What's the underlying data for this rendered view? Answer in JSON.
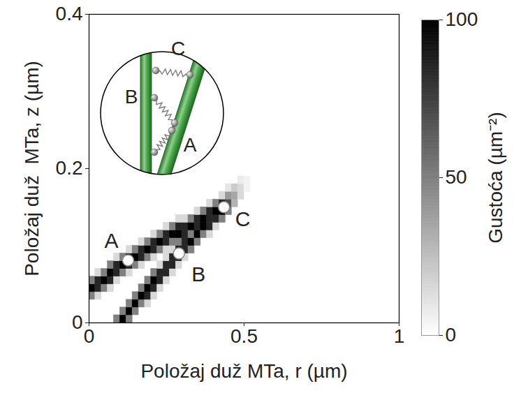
{
  "chart_data": {
    "type": "heatmap",
    "xlabel": "Položaj duž MTa, r (µm)",
    "ylabel": "Položaj duž  MTa, z (µm)",
    "xlim": [
      0,
      1
    ],
    "ylim": [
      0,
      0.4
    ],
    "xticks": [
      0,
      0.5,
      1
    ],
    "yticks": [
      0,
      0.2,
      0.4
    ],
    "cell_size": {
      "r": 0.02,
      "z": 0.01
    },
    "cells": [
      [
        0.01,
        0.035,
        50
      ],
      [
        0.01,
        0.045,
        100
      ],
      [
        0.01,
        0.055,
        50
      ],
      [
        0.03,
        0.035,
        15
      ],
      [
        0.03,
        0.045,
        85
      ],
      [
        0.03,
        0.055,
        85
      ],
      [
        0.03,
        0.065,
        15
      ],
      [
        0.05,
        0.045,
        50
      ],
      [
        0.05,
        0.055,
        100
      ],
      [
        0.05,
        0.065,
        50
      ],
      [
        0.07,
        0.045,
        15
      ],
      [
        0.07,
        0.055,
        85
      ],
      [
        0.07,
        0.065,
        100
      ],
      [
        0.07,
        0.075,
        50
      ],
      [
        0.09,
        0.005,
        50
      ],
      [
        0.09,
        0.055,
        15
      ],
      [
        0.09,
        0.065,
        85
      ],
      [
        0.09,
        0.075,
        85
      ],
      [
        0.09,
        0.085,
        15
      ],
      [
        0.11,
        0.005,
        100
      ],
      [
        0.11,
        0.015,
        50
      ],
      [
        0.11,
        0.065,
        50
      ],
      [
        0.11,
        0.075,
        100
      ],
      [
        0.11,
        0.085,
        50
      ],
      [
        0.13,
        0.005,
        50
      ],
      [
        0.13,
        0.015,
        100
      ],
      [
        0.13,
        0.025,
        50
      ],
      [
        0.13,
        0.065,
        15
      ],
      [
        0.13,
        0.075,
        85
      ],
      [
        0.13,
        0.085,
        85
      ],
      [
        0.13,
        0.095,
        15
      ],
      [
        0.15,
        0.015,
        50
      ],
      [
        0.15,
        0.025,
        100
      ],
      [
        0.15,
        0.035,
        50
      ],
      [
        0.15,
        0.075,
        50
      ],
      [
        0.15,
        0.085,
        100
      ],
      [
        0.15,
        0.095,
        50
      ],
      [
        0.17,
        0.025,
        50
      ],
      [
        0.17,
        0.035,
        100
      ],
      [
        0.17,
        0.045,
        50
      ],
      [
        0.17,
        0.075,
        15
      ],
      [
        0.17,
        0.085,
        85
      ],
      [
        0.17,
        0.095,
        85
      ],
      [
        0.17,
        0.105,
        15
      ],
      [
        0.19,
        0.025,
        15
      ],
      [
        0.19,
        0.035,
        85
      ],
      [
        0.19,
        0.045,
        100
      ],
      [
        0.19,
        0.055,
        50
      ],
      [
        0.19,
        0.085,
        50
      ],
      [
        0.19,
        0.095,
        100
      ],
      [
        0.19,
        0.105,
        50
      ],
      [
        0.21,
        0.035,
        15
      ],
      [
        0.21,
        0.045,
        85
      ],
      [
        0.21,
        0.055,
        100
      ],
      [
        0.21,
        0.065,
        50
      ],
      [
        0.21,
        0.085,
        15
      ],
      [
        0.21,
        0.095,
        85
      ],
      [
        0.21,
        0.105,
        85
      ],
      [
        0.21,
        0.115,
        15
      ],
      [
        0.23,
        0.045,
        15
      ],
      [
        0.23,
        0.055,
        85
      ],
      [
        0.23,
        0.065,
        85
      ],
      [
        0.23,
        0.075,
        15
      ],
      [
        0.23,
        0.095,
        50
      ],
      [
        0.23,
        0.105,
        100
      ],
      [
        0.23,
        0.115,
        50
      ],
      [
        0.25,
        0.055,
        15
      ],
      [
        0.25,
        0.065,
        85
      ],
      [
        0.25,
        0.075,
        85
      ],
      [
        0.25,
        0.085,
        15
      ],
      [
        0.25,
        0.095,
        15
      ],
      [
        0.25,
        0.105,
        85
      ],
      [
        0.25,
        0.115,
        85
      ],
      [
        0.25,
        0.125,
        15
      ],
      [
        0.27,
        0.065,
        15
      ],
      [
        0.27,
        0.075,
        85
      ],
      [
        0.27,
        0.085,
        85
      ],
      [
        0.27,
        0.095,
        15
      ],
      [
        0.27,
        0.105,
        50
      ],
      [
        0.27,
        0.115,
        100
      ],
      [
        0.27,
        0.125,
        50
      ],
      [
        0.29,
        0.075,
        15
      ],
      [
        0.29,
        0.085,
        85
      ],
      [
        0.29,
        0.095,
        85
      ],
      [
        0.29,
        0.105,
        50
      ],
      [
        0.29,
        0.115,
        100
      ],
      [
        0.29,
        0.125,
        85
      ],
      [
        0.29,
        0.135,
        15
      ],
      [
        0.31,
        0.085,
        15
      ],
      [
        0.31,
        0.095,
        85
      ],
      [
        0.31,
        0.105,
        85
      ],
      [
        0.31,
        0.115,
        85
      ],
      [
        0.31,
        0.125,
        85
      ],
      [
        0.31,
        0.135,
        15
      ],
      [
        0.33,
        0.095,
        50
      ],
      [
        0.33,
        0.105,
        100
      ],
      [
        0.33,
        0.115,
        50
      ],
      [
        0.33,
        0.125,
        100
      ],
      [
        0.33,
        0.135,
        50
      ],
      [
        0.35,
        0.105,
        50
      ],
      [
        0.35,
        0.115,
        100
      ],
      [
        0.35,
        0.125,
        85
      ],
      [
        0.35,
        0.135,
        85
      ],
      [
        0.35,
        0.145,
        15
      ],
      [
        0.37,
        0.115,
        50
      ],
      [
        0.37,
        0.125,
        100
      ],
      [
        0.37,
        0.135,
        100
      ],
      [
        0.37,
        0.145,
        50
      ],
      [
        0.39,
        0.115,
        15
      ],
      [
        0.39,
        0.125,
        85
      ],
      [
        0.39,
        0.135,
        85
      ],
      [
        0.39,
        0.145,
        85
      ],
      [
        0.39,
        0.155,
        15
      ],
      [
        0.41,
        0.125,
        15
      ],
      [
        0.41,
        0.135,
        85
      ],
      [
        0.41,
        0.145,
        100
      ],
      [
        0.41,
        0.155,
        50
      ],
      [
        0.43,
        0.135,
        50
      ],
      [
        0.43,
        0.145,
        100
      ],
      [
        0.43,
        0.155,
        85
      ],
      [
        0.43,
        0.165,
        15
      ],
      [
        0.45,
        0.145,
        50
      ],
      [
        0.45,
        0.155,
        70
      ],
      [
        0.45,
        0.165,
        40
      ],
      [
        0.45,
        0.175,
        10
      ],
      [
        0.47,
        0.155,
        30
      ],
      [
        0.47,
        0.165,
        35
      ],
      [
        0.47,
        0.175,
        20
      ],
      [
        0.49,
        0.165,
        15
      ],
      [
        0.49,
        0.175,
        15
      ],
      [
        0.49,
        0.185,
        8
      ],
      [
        0.51,
        0.175,
        5
      ],
      [
        0.51,
        0.185,
        5
      ]
    ],
    "points": [
      {
        "label": "A",
        "r": 0.126,
        "z": 0.081
      },
      {
        "label": "B",
        "r": 0.29,
        "z": 0.09
      },
      {
        "label": "C",
        "r": 0.435,
        "z": 0.15
      }
    ],
    "colorbar": {
      "label": "Gustoća (µm⁻²)",
      "range": [
        0,
        100
      ],
      "ticks": [
        0,
        50,
        100
      ],
      "colors": [
        "#ffffff",
        "#000000"
      ]
    },
    "inset": {
      "labels": [
        "A",
        "B",
        "C"
      ]
    }
  }
}
